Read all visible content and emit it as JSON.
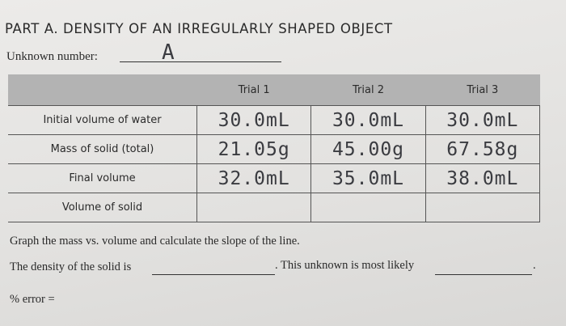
{
  "header": {
    "title": "PART A. DENSITY OF AN IRREGULARLY SHAPED OBJECT",
    "unknown_label": "Unknown number:",
    "unknown_value": "A"
  },
  "table": {
    "columns": [
      "Trial 1",
      "Trial 2",
      "Trial 3"
    ],
    "rows": [
      [
        "Initial volume of water",
        "30.0mL",
        "30.0mL",
        "30.0mL"
      ],
      [
        "Mass of solid (total)",
        "21.05g",
        "45.00g",
        "67.58g"
      ],
      [
        "Final volume",
        "32.0mL",
        "35.0mL",
        "38.0mL"
      ],
      [
        "Volume of solid"
      ]
    ]
  },
  "instructions": {
    "graph": "Graph the mass vs. volume and calculate the slope of the line.",
    "density": "The density of the solid is",
    "likely": ". This unknown is most likely",
    "end": ".",
    "error": "% error ="
  }
}
